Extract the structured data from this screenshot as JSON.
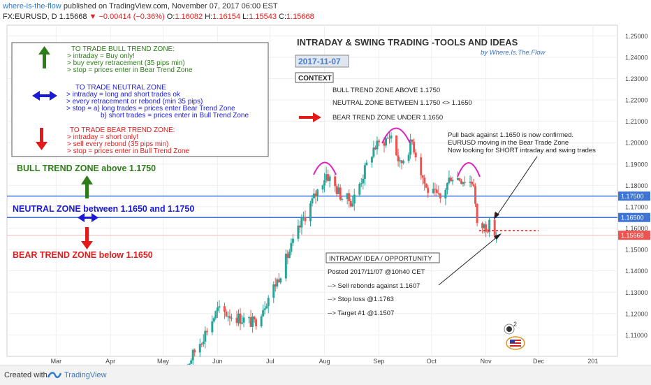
{
  "header": {
    "author": "where-is-the-flow",
    "published_text": "published on TradingView.com, November 07, 2017 06:00 EST",
    "symbol": "FX:EURUSD, D",
    "last": "1.15668",
    "change": "−0.00414 (−0.36%)",
    "o_label": "O:",
    "o_value": "1.16082",
    "h_label": "H:",
    "h_value": "1.16154",
    "l_label": "L:",
    "l_value": "1.15543",
    "c_label": "C:",
    "c_value": "1.15668"
  },
  "footer": {
    "created_with": "Created with",
    "brand": "TradingView"
  },
  "colors": {
    "up": "#26a69a",
    "down": "#ef5350",
    "bull": "#2e7d1a",
    "neutral": "#1a1ad6",
    "bear": "#e31a1a",
    "hline": "#3d74d6",
    "magenta": "#e020c0"
  },
  "chart_data": {
    "type": "candlestick",
    "title": "INTRADAY & SWING TRADING -TOOLS AND IDEAS",
    "subtitle": "by Where.Is.The.Flow",
    "date_label": "2017-11-07",
    "context_label": "CONTEXT",
    "ylim": [
      1.1,
      1.255
    ],
    "y_ticks": [
      "1.25000",
      "1.24000",
      "1.23000",
      "1.22000",
      "1.21000",
      "1.20000",
      "1.19000",
      "1.18000",
      "1.17000",
      "1.16000",
      "1.15000",
      "1.14000",
      "1.13000",
      "1.12000",
      "1.11000"
    ],
    "x_ticks": [
      "Mar",
      "Apr",
      "May",
      "Jun",
      "Jul",
      "Aug",
      "Sep",
      "Oct",
      "Nov",
      "Dec",
      "201"
    ],
    "price_tags": [
      {
        "value": 1.175,
        "label": "1.17500"
      },
      {
        "value": 1.165,
        "label": "1.16500"
      },
      {
        "value": 1.15668,
        "label": "1.15668"
      }
    ],
    "anchors": [
      {
        "date": "2017-05-09",
        "close": 1.0875
      },
      {
        "date": "2017-06-01",
        "close": 1.1215
      },
      {
        "date": "2017-06-22",
        "close": 1.1155
      },
      {
        "date": "2017-07-05",
        "close": 1.1355
      },
      {
        "date": "2017-07-20",
        "close": 1.1645
      },
      {
        "date": "2017-08-02",
        "close": 1.1855
      },
      {
        "date": "2017-08-11",
        "close": 1.1745
      },
      {
        "date": "2017-08-17",
        "close": 1.1725
      },
      {
        "date": "2017-08-29",
        "close": 1.1975
      },
      {
        "date": "2017-09-08",
        "close": 1.2035
      },
      {
        "date": "2017-09-13",
        "close": 1.1895
      },
      {
        "date": "2017-09-20",
        "close": 1.2005
      },
      {
        "date": "2017-09-28",
        "close": 1.1785
      },
      {
        "date": "2017-10-06",
        "close": 1.1735
      },
      {
        "date": "2017-10-12",
        "close": 1.1845
      },
      {
        "date": "2017-10-25",
        "close": 1.1815
      },
      {
        "date": "2017-10-27",
        "close": 1.1605
      },
      {
        "date": "2017-11-03",
        "close": 1.1612
      },
      {
        "date": "2017-11-07",
        "close": 1.15668
      }
    ],
    "legend_box": {
      "bull_title": "TO TRADE BULL TREND ZONE:",
      "bull_lines": [
        "> intraday = Buy only!",
        "> buy every retracement (35 pips min)",
        "> stop = prices enter in Bear Trend Zone"
      ],
      "neutral_title": "TO TRADE NEUTRAL ZONE",
      "neutral_lines": [
        "> intraday = long and short trades ok",
        "> every retracement or rebond (min 35 pips)",
        "> stop = a) long trades = prices enter Bear Trend Zone",
        "b) short trades = prices enter in Bull Trend Zone"
      ],
      "bear_title": "TO TRADE BEAR TREND ZONE:",
      "bear_lines": [
        "> intraday = short only!",
        "> sell every rebond (35 pips min)",
        "> stop = prices enter in Bull Trend Zone"
      ]
    },
    "zones": {
      "bull": "BULL TREND ZONE above 1.1750",
      "neutral": "NEUTRAL ZONE between 1.1650 and 1.1750",
      "bear": "BEAR TREND ZONE below 1.1650"
    },
    "context_lines": [
      "BULL TREND ZONE ABOVE 1.1750",
      "NEUTRAL ZONE BETWEEN 1.1750 <> 1.1650",
      "BEAR TREND ZONE UNDER 1.1650"
    ],
    "note_lines": [
      "Pull back against 1.1650 is now confirmed.",
      "EURUSD moving in the Bear Trade Zone",
      "Now looking for SHORT intraday and swing trades"
    ],
    "idea": {
      "title": "INTRADAY IDEA / OPPORTUNITY",
      "lines": [
        "Posted 2017/11/07 @10h40 CET",
        "--> Sell rebonds against 1.1607",
        "--> Stop loss @1.1763",
        "--> Target #1 @1.1507"
      ]
    },
    "badge_number": "2"
  }
}
